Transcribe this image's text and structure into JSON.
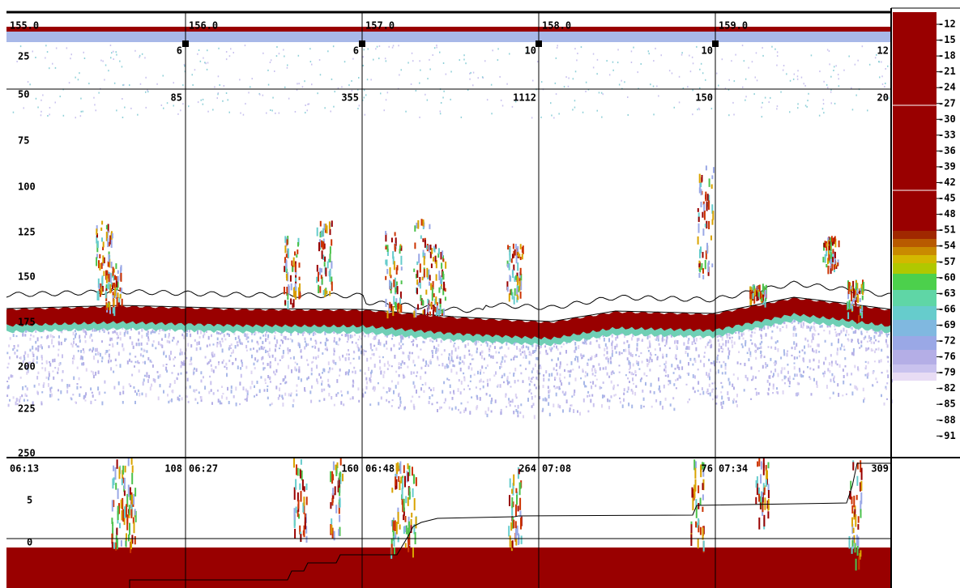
{
  "distance_labels": [
    "155.0",
    "156.0",
    "157.0",
    "158.0",
    "159.0"
  ],
  "upper_counts": [
    "6",
    "6",
    "10",
    "10",
    "12"
  ],
  "layer_counts": [
    "85",
    "355",
    "1112",
    "150",
    "20"
  ],
  "depth_labels": [
    "25",
    "50",
    "75",
    "100",
    "125",
    "150",
    "175",
    "200",
    "225",
    "250"
  ],
  "time_labels": [
    "06:13",
    "06:27",
    "06:48",
    "07:08",
    "07:34"
  ],
  "time_counts": [
    "108",
    "160",
    "264",
    "76",
    "309"
  ],
  "lower_axis_labels": [
    "5",
    "0"
  ],
  "color_scale_labels": [
    "-12",
    "-15",
    "-18",
    "-21",
    "-24",
    "-27",
    "-30",
    "-33",
    "-36",
    "-39",
    "-42",
    "-45",
    "-48",
    "-51",
    "-54",
    "-57",
    "-60",
    "-63",
    "-66",
    "-69",
    "-72",
    "-76",
    "-79",
    "-82",
    "-85",
    "-88",
    "-91"
  ]
}
